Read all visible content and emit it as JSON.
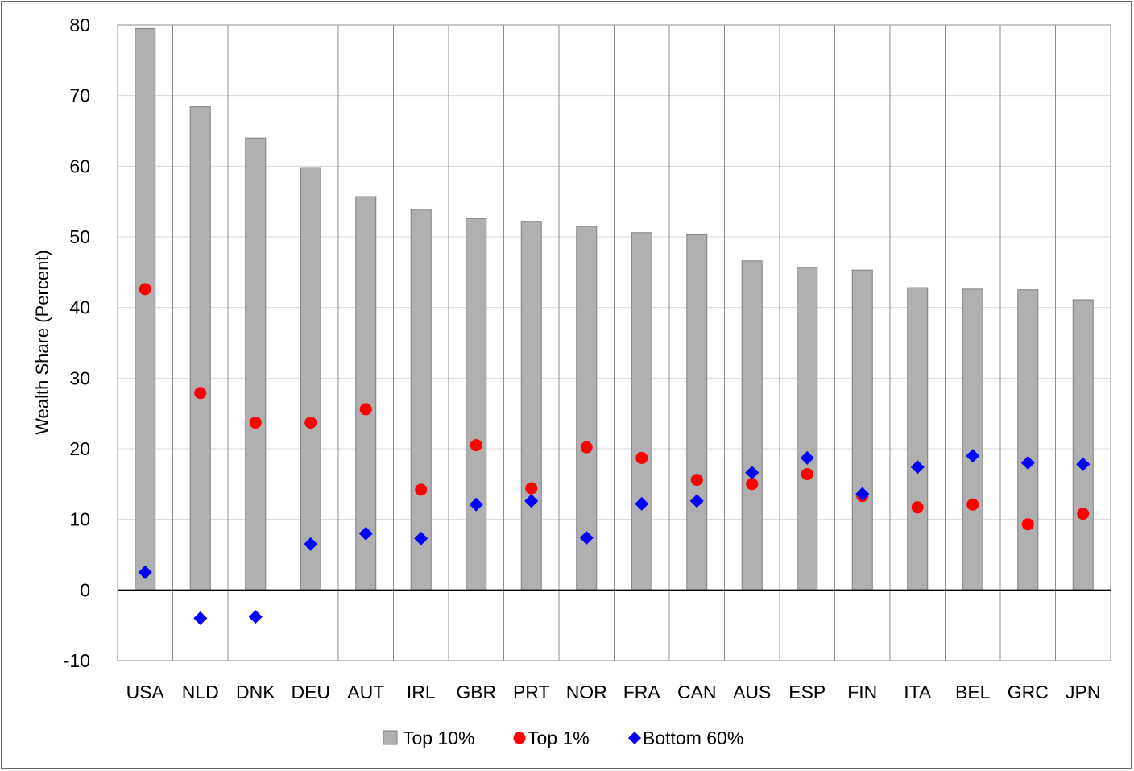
{
  "chart_data": {
    "type": "bar",
    "categories": [
      "USA",
      "NLD",
      "DNK",
      "DEU",
      "AUT",
      "IRL",
      "GBR",
      "PRT",
      "NOR",
      "FRA",
      "CAN",
      "AUS",
      "ESP",
      "FIN",
      "ITA",
      "BEL",
      "GRC",
      "JPN"
    ],
    "series": [
      {
        "name": "Top 10%",
        "kind": "bar",
        "color": "#b0b0b0",
        "values": [
          79.5,
          68.4,
          64.0,
          59.8,
          55.7,
          53.9,
          52.6,
          52.2,
          51.5,
          50.6,
          50.3,
          46.6,
          45.7,
          45.3,
          42.8,
          42.6,
          42.5,
          41.1
        ]
      },
      {
        "name": "Top 1%",
        "kind": "circle",
        "color": "#ff0000",
        "values": [
          42.6,
          27.9,
          23.7,
          23.7,
          25.6,
          14.2,
          20.5,
          14.4,
          20.2,
          18.7,
          15.6,
          15.0,
          16.4,
          13.3,
          11.7,
          12.1,
          9.3,
          10.8
        ]
      },
      {
        "name": "Bottom 60%",
        "kind": "diamond",
        "color": "#0000ff",
        "values": [
          2.5,
          -4.0,
          -3.8,
          6.5,
          8.0,
          7.3,
          12.1,
          12.6,
          7.4,
          12.2,
          12.6,
          16.6,
          18.7,
          13.6,
          17.4,
          19.0,
          18.0,
          17.8
        ]
      }
    ],
    "yticks": [
      -10,
      0,
      10,
      20,
      30,
      40,
      50,
      60,
      70,
      80
    ],
    "ylim": [
      -10,
      80
    ],
    "xlabel": "",
    "ylabel": "Wealth Share (Percent)",
    "legend_position": "bottom",
    "grid": true
  }
}
